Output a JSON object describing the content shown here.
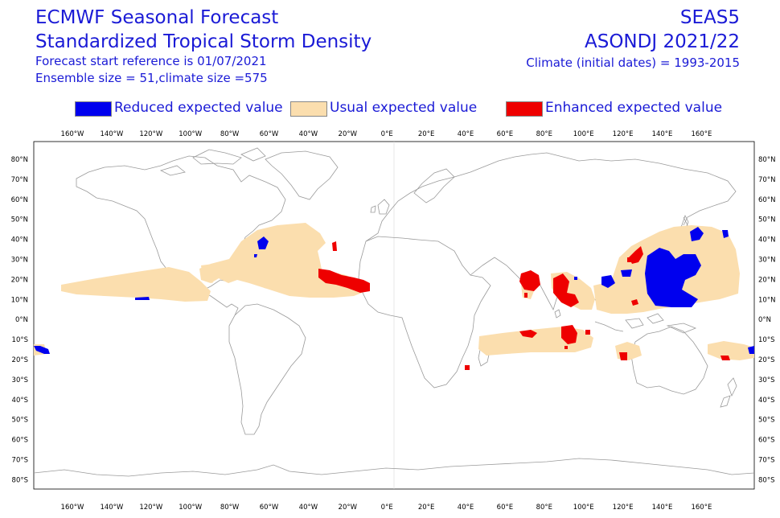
{
  "header": {
    "title_line1": "ECMWF Seasonal Forecast",
    "title_line2": "Standardized Tropical Storm Density",
    "start_ref": "Forecast start reference is 01/07/2021",
    "ensemble": "Ensemble size = 51,climate size =575",
    "system": "SEAS5",
    "period": "ASONDJ 2021/22",
    "climate": "Climate (initial dates) = 1993-2015"
  },
  "legend": {
    "items": [
      {
        "label": "Reduced expected value",
        "color": "#0000ee"
      },
      {
        "label": "Usual expected value",
        "color": "#fbdeae"
      },
      {
        "label": "Enhanced expected value",
        "color": "#ee0000"
      }
    ]
  },
  "map": {
    "lon_ticks": [
      "160°W",
      "140°W",
      "120°W",
      "100°W",
      "80°W",
      "60°W",
      "40°W",
      "20°W",
      "0°E",
      "20°E",
      "40°E",
      "60°E",
      "80°E",
      "100°E",
      "120°E",
      "140°E",
      "160°E"
    ],
    "lat_ticks": [
      "80°N",
      "70°N",
      "60°N",
      "50°N",
      "40°N",
      "30°N",
      "20°N",
      "10°N",
      "0°N",
      "10°S",
      "20°S",
      "30°S",
      "40°S",
      "50°S",
      "60°S",
      "70°S",
      "80°S"
    ],
    "colors": {
      "reduced": "#0000ee",
      "usual": "#fbdeae",
      "enhanced": "#ee0000",
      "coast": "#9a9a9a",
      "frame": "#000000"
    }
  }
}
